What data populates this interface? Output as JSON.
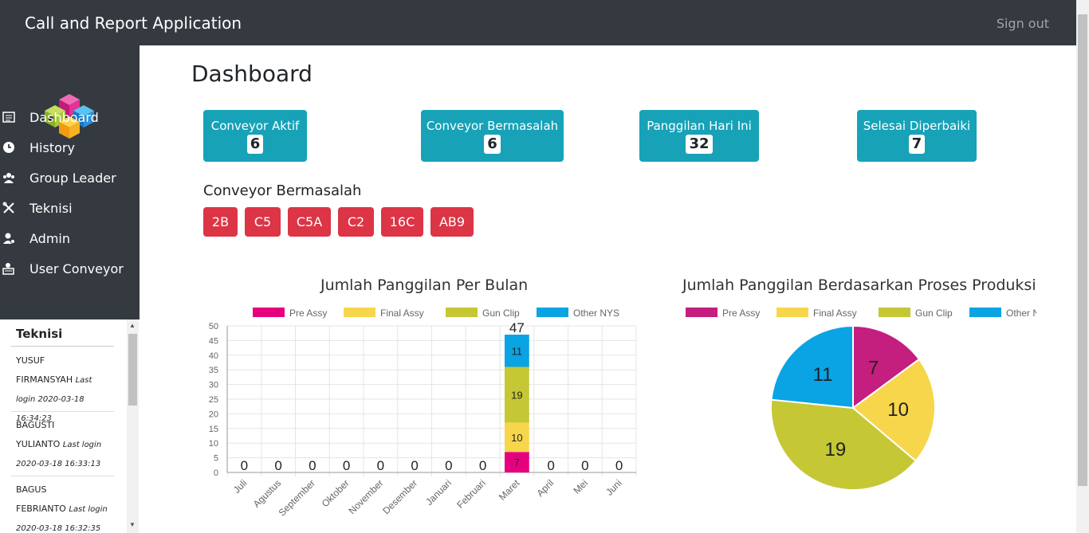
{
  "header": {
    "title": "Call and Report Application",
    "signout": "Sign out"
  },
  "sidebar": {
    "items": [
      {
        "label": "Dashboard",
        "icon": "list-icon"
      },
      {
        "label": "History",
        "icon": "clock-icon"
      },
      {
        "label": "Group Leader",
        "icon": "group-icon"
      },
      {
        "label": "Teknisi",
        "icon": "tools-icon"
      },
      {
        "label": "Admin",
        "icon": "user-gear-icon"
      },
      {
        "label": "User Conveyor",
        "icon": "printer-user-icon"
      }
    ]
  },
  "teknisi_panel": {
    "title": "Teknisi",
    "entries": [
      {
        "name1": "YUSUF",
        "name2": "FIRMANSYAH",
        "last": "Last",
        "login": "login 2020-03-18 16:34:23"
      },
      {
        "name1": "BAGUSTI",
        "name2": "YULIANTO",
        "last": "Last login",
        "login": "2020-03-18 16:33:13"
      },
      {
        "name1": "BAGUS",
        "name2": "FEBRIANTO",
        "last": "Last login",
        "login": "2020-03-18 16:32:35"
      }
    ]
  },
  "main": {
    "title": "Dashboard",
    "stats": [
      {
        "label": "Conveyor Aktif",
        "value": "6"
      },
      {
        "label": "Conveyor Bermasalah",
        "value": "6"
      },
      {
        "label": "Panggilan Hari Ini",
        "value": "32"
      },
      {
        "label": "Selesai Diperbaiki",
        "value": "7"
      }
    ],
    "problem_title": "Conveyor Bermasalah",
    "problem_conveyors": [
      "2B",
      "C5",
      "C5A",
      "C2",
      "16C",
      "AB9"
    ]
  },
  "colors": {
    "teal": "#17a2b8",
    "red": "#dc3545",
    "dark": "#343a40"
  },
  "chart_data": [
    {
      "type": "bar",
      "stacked": true,
      "title": "Jumlah Panggilan Per Bulan",
      "categories": [
        "Juli",
        "Agustus",
        "September",
        "Oktober",
        "November",
        "Desember",
        "Januari",
        "Februari",
        "Maret",
        "April",
        "Mei",
        "Juni"
      ],
      "series": [
        {
          "name": "Pre Assy",
          "color": "#e6007e",
          "values": [
            0,
            0,
            0,
            0,
            0,
            0,
            0,
            0,
            7,
            0,
            0,
            0
          ]
        },
        {
          "name": "Final Assy",
          "color": "#f7d64c",
          "values": [
            0,
            0,
            0,
            0,
            0,
            0,
            0,
            0,
            10,
            0,
            0,
            0
          ]
        },
        {
          "name": "Gun Clip",
          "color": "#c5c735",
          "values": [
            0,
            0,
            0,
            0,
            0,
            0,
            0,
            0,
            19,
            0,
            0,
            0
          ]
        },
        {
          "name": "Other NYS",
          "color": "#0aa3e4",
          "values": [
            0,
            0,
            0,
            0,
            0,
            0,
            0,
            0,
            11,
            0,
            0,
            0
          ]
        }
      ],
      "totals": [
        0,
        0,
        0,
        0,
        0,
        0,
        0,
        0,
        47,
        0,
        0,
        0
      ],
      "ylim": [
        0,
        50
      ],
      "yticks": [
        0,
        5,
        10,
        15,
        20,
        25,
        30,
        35,
        40,
        45,
        50
      ],
      "legend": "top",
      "grid": true
    },
    {
      "type": "pie",
      "title": "Jumlah Panggilan Berdasarkan Proses Produksi",
      "labels": [
        "Pre Assy",
        "Final Assy",
        "Gun Clip",
        "Other NYS"
      ],
      "values": [
        7,
        10,
        19,
        11
      ],
      "colors": [
        "#c41e7f",
        "#f7d64c",
        "#c5c735",
        "#0aa3e4"
      ],
      "legend": "top"
    }
  ]
}
